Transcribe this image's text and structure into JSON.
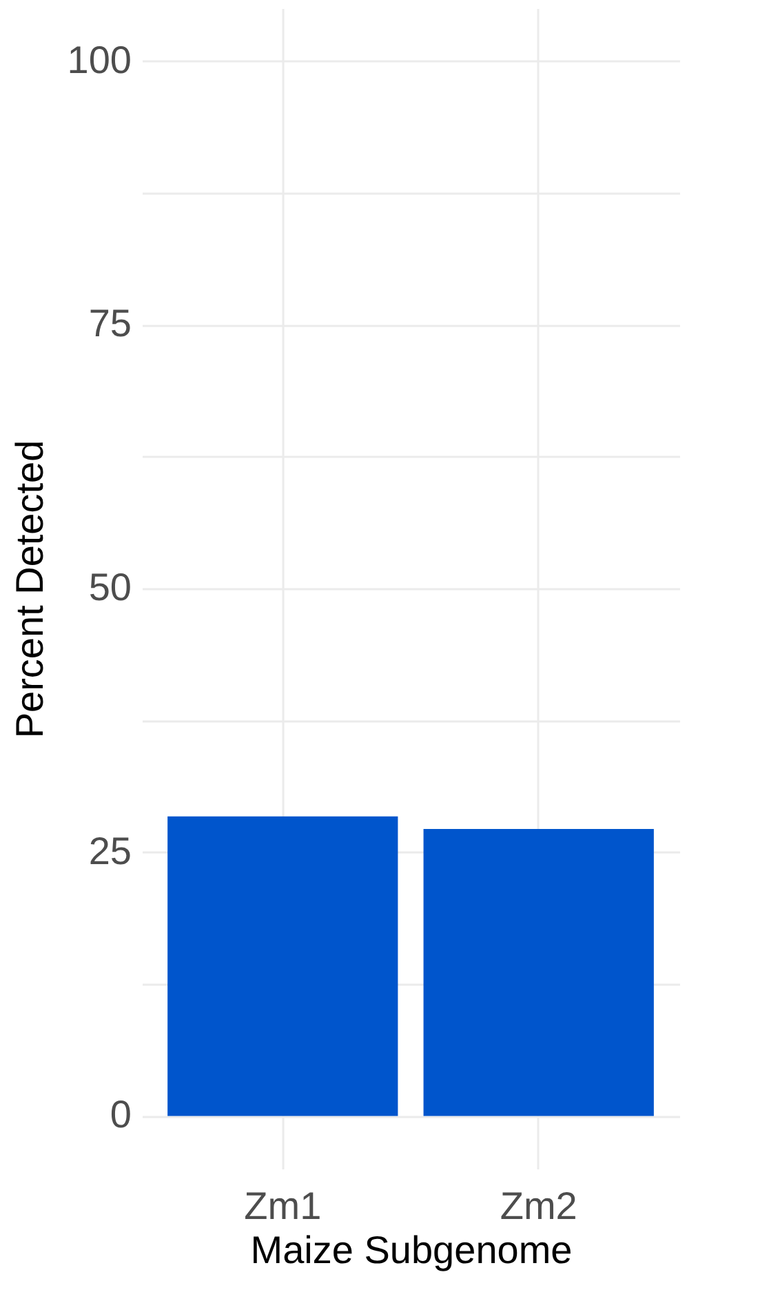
{
  "chart_data": {
    "type": "bar",
    "xlabel": "Maize Subgenome",
    "ylabel": "Percent Detected",
    "categories": [
      "Zm1",
      "Zm2"
    ],
    "values": [
      28.4,
      27.2
    ],
    "color": "#0055cc",
    "ylim": [
      -5,
      105
    ],
    "yticks": [
      0,
      {
        "value": 12.5,
        "label": null
      },
      25,
      {
        "value": 37.5,
        "label": null
      },
      50,
      {
        "value": 62.5,
        "label": null
      },
      75,
      {
        "value": 87.5,
        "label": null
      },
      100
    ],
    "grid": true
  }
}
